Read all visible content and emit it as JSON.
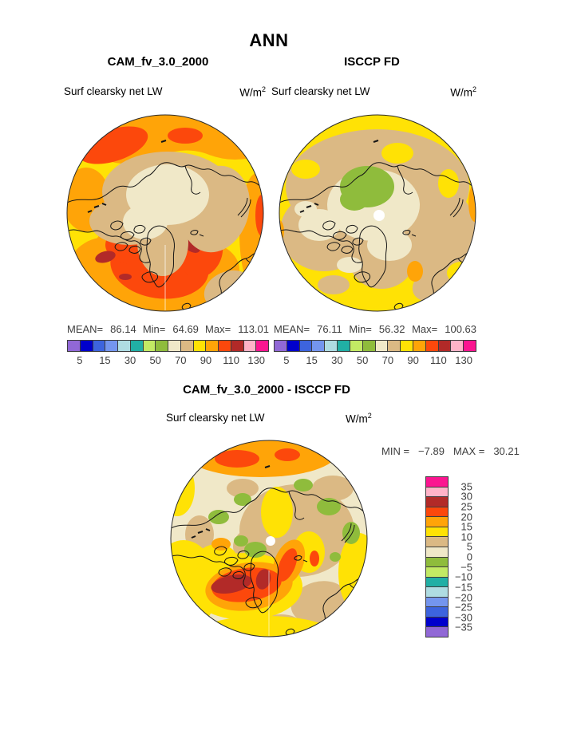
{
  "figure": {
    "title": "ANN",
    "background": "#ffffff"
  },
  "panels": {
    "cam": {
      "title": "CAM_fv_3.0_2000",
      "variable": "Surf clearsky net LW",
      "units_base": "W/m",
      "units_exp": "2",
      "stats": {
        "mean_label": "MEAN=",
        "mean": "86.14",
        "min_label": "Min=",
        "min": "64.69",
        "max_label": "Max=",
        "max": "113.01"
      }
    },
    "isccp": {
      "title": "ISCCP FD",
      "variable": "Surf clearsky net LW",
      "units_base": "W/m",
      "units_exp": "2",
      "stats": {
        "mean_label": "MEAN=",
        "mean": "76.11",
        "min_label": "Min=",
        "min": "56.32",
        "max_label": "Max=",
        "max": "100.63"
      }
    },
    "diff": {
      "title": "CAM_fv_3.0_2000 - ISCCP FD",
      "variable": "Surf clearsky net LW",
      "units_base": "W/m",
      "units_exp": "2",
      "stats": {
        "min_label": "MIN =",
        "min": "−7.89",
        "max_label": "MAX =",
        "max": "30.21"
      }
    }
  },
  "colorbars": {
    "absolute": {
      "orientation": "horizontal",
      "colors": [
        "#9168D6",
        "#0000CC",
        "#3D64DE",
        "#7495EE",
        "#AFDCE2",
        "#21AFA5",
        "#C3EA64",
        "#8FBC3C",
        "#F0E8C8",
        "#DBB984",
        "#FFE205",
        "#FFA408",
        "#FC480C",
        "#B22A28",
        "#FFB3C8",
        "#FB1590"
      ],
      "tick_labels": [
        "5",
        "15",
        "30",
        "50",
        "70",
        "90",
        "110",
        "130"
      ]
    },
    "difference": {
      "orientation": "vertical",
      "colors": [
        "#FB1590",
        "#FFB3C8",
        "#B22A28",
        "#FC480C",
        "#FFA408",
        "#FFE205",
        "#DBB984",
        "#F0E8C8",
        "#8FBC3C",
        "#C3EA64",
        "#21AFA5",
        "#AFDCE2",
        "#7495EE",
        "#3D64DE",
        "#0000CC",
        "#9168D6"
      ],
      "tick_labels": [
        "35",
        "30",
        "25",
        "20",
        "15",
        "10",
        "5",
        "0",
        "−5",
        "−10",
        "−15",
        "−20",
        "−25",
        "−30",
        "−35"
      ]
    }
  },
  "chart_data": [
    {
      "type": "heatmap",
      "projection": "north-polar-stereographic",
      "title": "CAM_fv_3.0_2000",
      "variable": "Surf clearsky net LW",
      "units": "W/m^2",
      "season": "ANN",
      "stats": {
        "mean": 86.14,
        "min": 64.69,
        "max": 113.01
      },
      "contour_levels": [
        5,
        10,
        15,
        20,
        30,
        40,
        50,
        60,
        70,
        80,
        90,
        100,
        110,
        120,
        130
      ],
      "labeled_levels": [
        5,
        15,
        30,
        50,
        70,
        90,
        110,
        130
      ],
      "palette": [
        "#9168D6",
        "#0000CC",
        "#3D64DE",
        "#7495EE",
        "#AFDCE2",
        "#21AFA5",
        "#C3EA64",
        "#8FBC3C",
        "#F0E8C8",
        "#DBB984",
        "#FFE205",
        "#FFA408",
        "#FC480C",
        "#B22A28",
        "#FFB3C8",
        "#FB1590"
      ],
      "legend_position": "below"
    },
    {
      "type": "heatmap",
      "projection": "north-polar-stereographic",
      "title": "ISCCP FD",
      "variable": "Surf clearsky net LW",
      "units": "W/m^2",
      "season": "ANN",
      "stats": {
        "mean": 76.11,
        "min": 56.32,
        "max": 100.63
      },
      "contour_levels": [
        5,
        10,
        15,
        20,
        30,
        40,
        50,
        60,
        70,
        80,
        90,
        100,
        110,
        120,
        130
      ],
      "labeled_levels": [
        5,
        15,
        30,
        50,
        70,
        90,
        110,
        130
      ],
      "palette": [
        "#9168D6",
        "#0000CC",
        "#3D64DE",
        "#7495EE",
        "#AFDCE2",
        "#21AFA5",
        "#C3EA64",
        "#8FBC3C",
        "#F0E8C8",
        "#DBB984",
        "#FFE205",
        "#FFA408",
        "#FC480C",
        "#B22A28",
        "#FFB3C8",
        "#FB1590"
      ],
      "legend_position": "below"
    },
    {
      "type": "heatmap",
      "projection": "north-polar-stereographic",
      "title": "CAM_fv_3.0_2000 - ISCCP FD",
      "variable": "Surf clearsky net LW",
      "units": "W/m^2",
      "season": "ANN",
      "stats": {
        "min": -7.89,
        "max": 30.21
      },
      "contour_levels": [
        -35,
        -30,
        -25,
        -20,
        -15,
        -10,
        -5,
        0,
        5,
        10,
        15,
        20,
        25,
        30,
        35
      ],
      "labeled_levels": [
        35,
        30,
        25,
        20,
        15,
        10,
        5,
        0,
        -5,
        -10,
        -15,
        -20,
        -25,
        -30,
        -35
      ],
      "palette_top_to_bottom": [
        "#FB1590",
        "#FFB3C8",
        "#B22A28",
        "#FC480C",
        "#FFA408",
        "#FFE205",
        "#DBB984",
        "#F0E8C8",
        "#8FBC3C",
        "#C3EA64",
        "#21AFA5",
        "#AFDCE2",
        "#7495EE",
        "#3D64DE",
        "#0000CC",
        "#9168D6"
      ],
      "legend_position": "right"
    }
  ]
}
